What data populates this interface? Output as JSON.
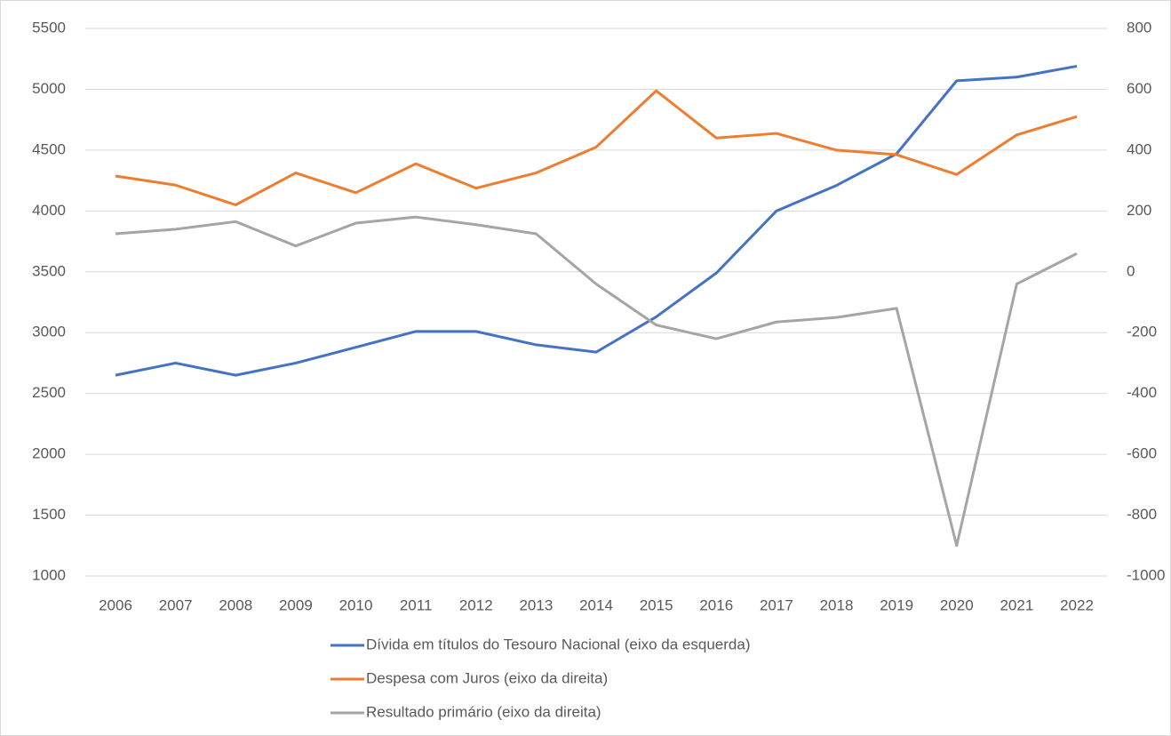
{
  "chart_data": {
    "type": "line",
    "categories": [
      "2006",
      "2007",
      "2008",
      "2009",
      "2010",
      "2011",
      "2012",
      "2013",
      "2014",
      "2015",
      "2016",
      "2017",
      "2018",
      "2019",
      "2020",
      "2021",
      "2022"
    ],
    "series": [
      {
        "name": "Dívida em títulos do Tesouro Nacional (eixo da esquerda)",
        "color": "#4472c4",
        "values": [
          2650,
          2750,
          2650,
          2750,
          2880,
          3010,
          3010,
          2900,
          2840,
          3130,
          3490,
          4000,
          4210,
          4470,
          5070,
          5100,
          5190
        ]
      },
      {
        "name": "Despesa com Juros (eixo da direita)",
        "color": "#ed7d31",
        "axis": "y2",
        "values": [
          315,
          285,
          220,
          325,
          260,
          355,
          275,
          325,
          410,
          595,
          440,
          455,
          400,
          385,
          320,
          450,
          510
        ]
      },
      {
        "name": "Resultado primário (eixo da direita)",
        "color": "#a5a5a5",
        "axis": "y2",
        "values": [
          125,
          140,
          165,
          85,
          160,
          180,
          155,
          125,
          -40,
          -175,
          -220,
          -165,
          -150,
          -120,
          -900,
          -40,
          60
        ]
      }
    ],
    "ylim": [
      1000,
      5500
    ],
    "yticks": [
      1000,
      1500,
      2000,
      2500,
      3000,
      3500,
      4000,
      4500,
      5000,
      5500
    ],
    "y2lim": [
      -1000,
      800
    ],
    "y2ticks": [
      -1000,
      -800,
      -600,
      -400,
      -200,
      0,
      200,
      400,
      600,
      800
    ],
    "grid": true,
    "legend": "bottom"
  }
}
